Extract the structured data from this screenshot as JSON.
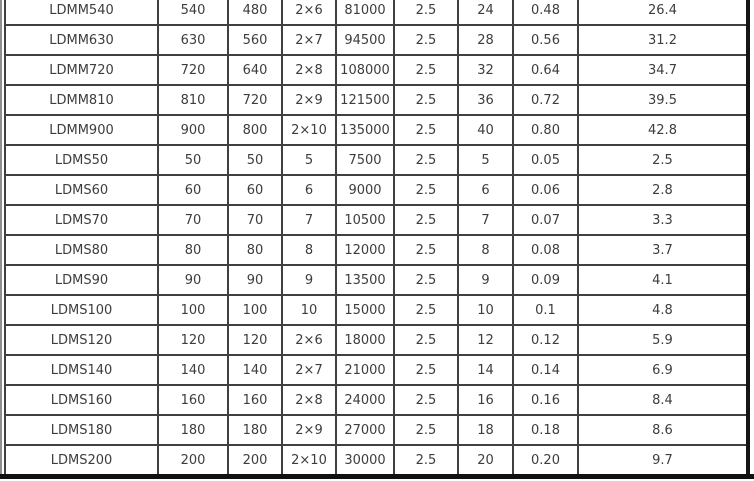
{
  "colors": {
    "background": "#ffffff",
    "cell_border": "#404040",
    "outer_border": "#161616",
    "left_edge_line": "#8f8f8f",
    "text": "#3d3d3d"
  },
  "table": {
    "description": "product specification table (cropped, no header row visible)",
    "rows": [
      [
        "LDMM540",
        "540",
        "480",
        "2×6",
        "81000",
        "2.5",
        "24",
        "0.48",
        "26.4"
      ],
      [
        "LDMM630",
        "630",
        "560",
        "2×7",
        "94500",
        "2.5",
        "28",
        "0.56",
        "31.2"
      ],
      [
        "LDMM720",
        "720",
        "640",
        "2×8",
        "108000",
        "2.5",
        "32",
        "0.64",
        "34.7"
      ],
      [
        "LDMM810",
        "810",
        "720",
        "2×9",
        "121500",
        "2.5",
        "36",
        "0.72",
        "39.5"
      ],
      [
        "LDMM900",
        "900",
        "800",
        "2×10",
        "135000",
        "2.5",
        "40",
        "0.80",
        "42.8"
      ],
      [
        "LDMS50",
        "50",
        "50",
        "5",
        "7500",
        "2.5",
        "5",
        "0.05",
        "2.5"
      ],
      [
        "LDMS60",
        "60",
        "60",
        "6",
        "9000",
        "2.5",
        "6",
        "0.06",
        "2.8"
      ],
      [
        "LDMS70",
        "70",
        "70",
        "7",
        "10500",
        "2.5",
        "7",
        "0.07",
        "3.3"
      ],
      [
        "LDMS80",
        "80",
        "80",
        "8",
        "12000",
        "2.5",
        "8",
        "0.08",
        "3.7"
      ],
      [
        "LDMS90",
        "90",
        "90",
        "9",
        "13500",
        "2.5",
        "9",
        "0.09",
        "4.1"
      ],
      [
        "LDMS100",
        "100",
        "100",
        "10",
        "15000",
        "2.5",
        "10",
        "0.1",
        "4.8"
      ],
      [
        "LDMS120",
        "120",
        "120",
        "2×6",
        "18000",
        "2.5",
        "12",
        "0.12",
        "5.9"
      ],
      [
        "LDMS140",
        "140",
        "140",
        "2×7",
        "21000",
        "2.5",
        "14",
        "0.14",
        "6.9"
      ],
      [
        "LDMS160",
        "160",
        "160",
        "2×8",
        "24000",
        "2.5",
        "16",
        "0.16",
        "8.4"
      ],
      [
        "LDMS180",
        "180",
        "180",
        "2×9",
        "27000",
        "2.5",
        "18",
        "0.18",
        "8.6"
      ],
      [
        "LDMS200",
        "200",
        "200",
        "2×10",
        "30000",
        "2.5",
        "20",
        "0.20",
        "9.7"
      ]
    ]
  }
}
